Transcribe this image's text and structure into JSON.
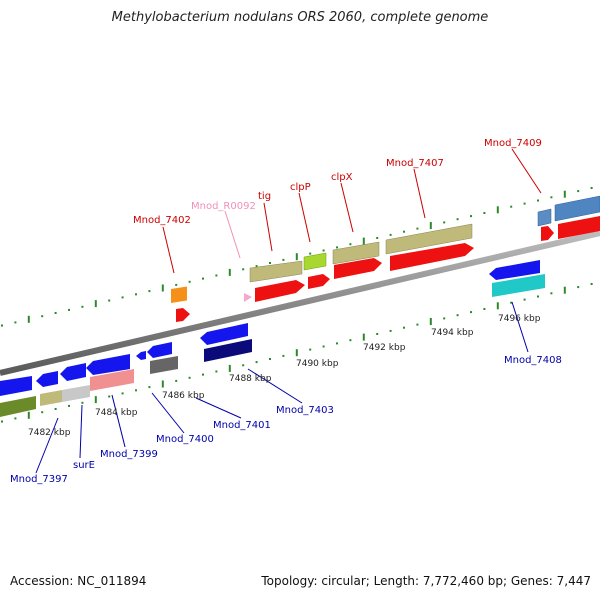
{
  "title": "Methylobacterium nodulans ORS 2060, complete genome",
  "footer": {
    "accession": "Accession: NC_011894",
    "summary": "Topology: circular; Length: 7,772,460 bp; Genes: 7,447"
  },
  "scale_labels": [
    "7482 kbp",
    "7484 kbp",
    "7486 kbp",
    "7488 kbp",
    "7490 kbp",
    "7492 kbp",
    "7494 kbp",
    "7496 kbp"
  ],
  "colors": {
    "backbone": "#888888",
    "tick": "#2a8a2a",
    "upper_label": "#cc0000",
    "rna_label": "#f090b8",
    "lower_label": "#0000aa"
  },
  "upper_labels": [
    "Mnod_7402",
    "Mnod_R0092",
    "tig",
    "clpP",
    "clpX",
    "Mnod_7407",
    "Mnod_7409"
  ],
  "lower_labels": [
    "Mnod_7397",
    "surE",
    "Mnod_7399",
    "Mnod_7400",
    "Mnod_7401",
    "Mnod_7403",
    "Mnod_7408"
  ]
}
